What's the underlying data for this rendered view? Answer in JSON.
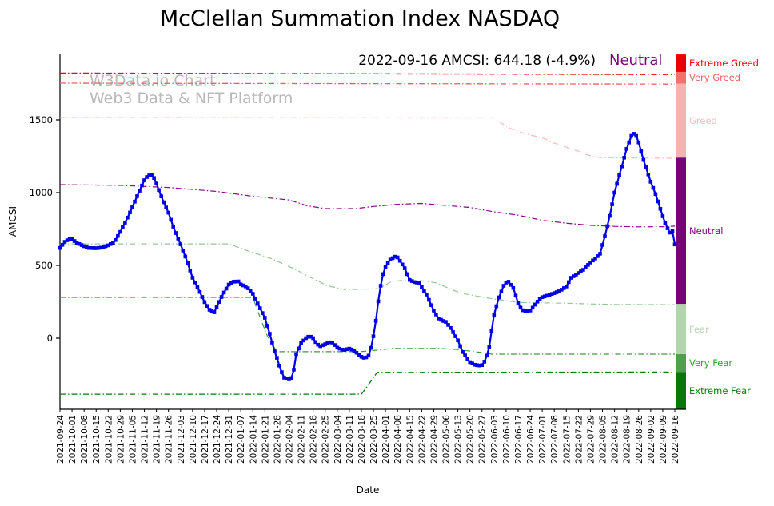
{
  "title": "McClellan Summation Index NASDAQ",
  "annotation": {
    "text": "2022-09-16 AMCSI: 644.18 (-4.9%)",
    "status": "Neutral",
    "status_color": "#7a067a"
  },
  "watermark": {
    "line1": "W3Data.io Chart",
    "line2": "Web3 Data & NFT Platform"
  },
  "chart_data": {
    "type": "line",
    "title": "McClellan Summation Index NASDAQ",
    "xlabel": "Date",
    "ylabel": "AMCSI",
    "ylim": [
      -490,
      1950
    ],
    "y_ticks": [
      0,
      500,
      1000,
      1500
    ],
    "grid": false,
    "x_ticklabels": [
      "2021-09-24",
      "2021-10-01",
      "2021-10-08",
      "2021-10-15",
      "2021-10-22",
      "2021-10-29",
      "2021-11-05",
      "2021-11-12",
      "2021-11-19",
      "2021-11-26",
      "2021-12-03",
      "2021-12-10",
      "2021-12-17",
      "2021-12-24",
      "2021-12-31",
      "2022-01-07",
      "2022-01-14",
      "2022-01-21",
      "2022-01-28",
      "2022-02-04",
      "2022-02-11",
      "2022-02-18",
      "2022-02-25",
      "2022-03-04",
      "2022-03-11",
      "2022-03-18",
      "2022-03-25",
      "2022-04-01",
      "2022-04-08",
      "2022-04-15",
      "2022-04-22",
      "2022-04-29",
      "2022-05-06",
      "2022-05-13",
      "2022-05-20",
      "2022-05-27",
      "2022-06-03",
      "2022-06-10",
      "2022-06-17",
      "2022-06-24",
      "2022-07-01",
      "2022-07-08",
      "2022-07-15",
      "2022-07-22",
      "2022-07-29",
      "2022-08-05",
      "2022-08-12",
      "2022-08-19",
      "2022-08-26",
      "2022-09-02",
      "2022-09-09",
      "2022-09-16"
    ],
    "zones": [
      {
        "label": "Extreme Greed",
        "from": 1830,
        "to": 1950,
        "color": "#e60000",
        "label_color": "#ee0000"
      },
      {
        "label": "Very Greed",
        "from": 1750,
        "to": 1830,
        "color": "#f47070",
        "label_color": "#f25f5f"
      },
      {
        "label": "Greed",
        "from": 1240,
        "to": 1750,
        "color": "#f6b1b1",
        "label_color": "#f9bcbc"
      },
      {
        "label": "Neutral",
        "from": 235,
        "to": 1240,
        "color": "#770377",
        "label_color": "#800080"
      },
      {
        "label": "Fear",
        "from": -110,
        "to": 235,
        "color": "#b3d5ae",
        "label_color": "#b4d5b0"
      },
      {
        "label": "Very Fear",
        "from": -232,
        "to": -110,
        "color": "#4f9f4f",
        "label_color": "#2f9e2f"
      },
      {
        "label": "Extreme Fear",
        "from": -490,
        "to": -232,
        "color": "#087808",
        "label_color": "#067d06"
      }
    ],
    "series": [
      {
        "name": "extreme-greed-threshold",
        "role": "threshold",
        "color": "#ee0000",
        "width": 1.4,
        "points": [
          [
            0,
            1822
          ],
          [
            51,
            1812
          ]
        ]
      },
      {
        "name": "very-greed-threshold",
        "role": "threshold",
        "color": "#f25f5f",
        "width": 1.3,
        "points": [
          [
            0,
            1753
          ],
          [
            51,
            1746
          ]
        ]
      },
      {
        "name": "greed-threshold",
        "role": "threshold",
        "color": "#f9bcbc",
        "width": 1.3,
        "points": [
          [
            0,
            1516
          ],
          [
            36,
            1514
          ],
          [
            36.6,
            1478
          ],
          [
            37.3,
            1443
          ],
          [
            38,
            1420
          ],
          [
            39,
            1395
          ],
          [
            39.6,
            1385
          ],
          [
            40.3,
            1368
          ],
          [
            40.7,
            1348
          ],
          [
            41.5,
            1328
          ],
          [
            42.3,
            1303
          ],
          [
            43,
            1285
          ],
          [
            43.6,
            1263
          ],
          [
            44.3,
            1247
          ],
          [
            45,
            1240
          ],
          [
            51,
            1236
          ]
        ]
      },
      {
        "name": "neutral-threshold",
        "role": "threshold",
        "color": "#8b008b",
        "width": 1.2,
        "points": [
          [
            0,
            1055
          ],
          [
            5,
            1050
          ],
          [
            9,
            1035
          ],
          [
            13,
            1008
          ],
          [
            16,
            975
          ],
          [
            19,
            950
          ],
          [
            20.5,
            910
          ],
          [
            22,
            890
          ],
          [
            24.5,
            890
          ],
          [
            26,
            905
          ],
          [
            28,
            920
          ],
          [
            30,
            926
          ],
          [
            32,
            912
          ],
          [
            34,
            898
          ],
          [
            36,
            868
          ],
          [
            38,
            845
          ],
          [
            40,
            810
          ],
          [
            42,
            790
          ],
          [
            44,
            775
          ],
          [
            46,
            768
          ],
          [
            48,
            765
          ],
          [
            50,
            766
          ],
          [
            51,
            770
          ]
        ]
      },
      {
        "name": "fear-threshold",
        "role": "threshold",
        "color": "#93c793",
        "width": 1.2,
        "points": [
          [
            0,
            648
          ],
          [
            14,
            648
          ],
          [
            15.6,
            600
          ],
          [
            17.6,
            545
          ],
          [
            19.6,
            470
          ],
          [
            20.6,
            425
          ],
          [
            22.2,
            360
          ],
          [
            23.7,
            333
          ],
          [
            26.5,
            340
          ],
          [
            27.5,
            390
          ],
          [
            28.5,
            398
          ],
          [
            30.2,
            394
          ],
          [
            31.2,
            380
          ],
          [
            33.2,
            310
          ],
          [
            35.5,
            275
          ],
          [
            38.1,
            245
          ],
          [
            40,
            243
          ],
          [
            42,
            240
          ],
          [
            44,
            235
          ],
          [
            46,
            232
          ],
          [
            51,
            230
          ]
        ]
      },
      {
        "name": "very-fear-threshold",
        "role": "threshold",
        "color": "#3d9a3d",
        "width": 1.2,
        "points": [
          [
            0,
            280
          ],
          [
            16,
            280
          ],
          [
            16.6,
            143
          ],
          [
            17.2,
            16
          ],
          [
            18,
            -93
          ],
          [
            24.9,
            -93
          ],
          [
            26,
            -85
          ],
          [
            27.5,
            -71
          ],
          [
            31.5,
            -71
          ],
          [
            33,
            -78
          ],
          [
            35.3,
            -102
          ],
          [
            35.8,
            -110
          ],
          [
            51,
            -110
          ]
        ]
      },
      {
        "name": "extreme-fear-threshold",
        "role": "threshold",
        "color": "#067d06",
        "width": 1.3,
        "points": [
          [
            0,
            -385
          ],
          [
            25.0,
            -385
          ],
          [
            25.5,
            -330
          ],
          [
            26.3,
            -235
          ],
          [
            51,
            -233
          ]
        ]
      },
      {
        "name": "amcsi",
        "role": "main",
        "color": "#0000e6",
        "width": 2.2,
        "marker": "square",
        "marker_size": 4.6,
        "points": [
          [
            0,
            620
          ],
          [
            0.4,
            662
          ],
          [
            0.8,
            683
          ],
          [
            1,
            680
          ],
          [
            1.4,
            655
          ],
          [
            2,
            632
          ],
          [
            2.4,
            620
          ],
          [
            3,
            618
          ],
          [
            3.4,
            622
          ],
          [
            4,
            638
          ],
          [
            4.5,
            660
          ],
          [
            5,
            730
          ],
          [
            5.5,
            810
          ],
          [
            6,
            900
          ],
          [
            6.5,
            995
          ],
          [
            7,
            1085
          ],
          [
            7.3,
            1118
          ],
          [
            7.7,
            1120
          ],
          [
            8,
            1062
          ],
          [
            8.5,
            952
          ],
          [
            9,
            862
          ],
          [
            9.5,
            742
          ],
          [
            10,
            645
          ],
          [
            10.5,
            540
          ],
          [
            11,
            415
          ],
          [
            11.5,
            335
          ],
          [
            12,
            248
          ],
          [
            12.4,
            195
          ],
          [
            12.8,
            178
          ],
          [
            13,
            215
          ],
          [
            13.5,
            300
          ],
          [
            14,
            368
          ],
          [
            14.4,
            388
          ],
          [
            14.8,
            390
          ],
          [
            15,
            370
          ],
          [
            15.5,
            352
          ],
          [
            16,
            305
          ],
          [
            16.5,
            222
          ],
          [
            17,
            140
          ],
          [
            17.4,
            30
          ],
          [
            17.8,
            -90
          ],
          [
            18,
            -135
          ],
          [
            18.3,
            -215
          ],
          [
            18.6,
            -272
          ],
          [
            19,
            -283
          ],
          [
            19.3,
            -270
          ],
          [
            19.6,
            -110
          ],
          [
            20,
            -32
          ],
          [
            20.4,
            0
          ],
          [
            20.7,
            15
          ],
          [
            21,
            0
          ],
          [
            21.3,
            -40
          ],
          [
            21.6,
            -55
          ],
          [
            22,
            -42
          ],
          [
            22.3,
            -28
          ],
          [
            22.6,
            -30
          ],
          [
            23,
            -65
          ],
          [
            23.5,
            -82
          ],
          [
            24,
            -72
          ],
          [
            24.3,
            -80
          ],
          [
            24.6,
            -100
          ],
          [
            25,
            -128
          ],
          [
            25.3,
            -138
          ],
          [
            25.6,
            -120
          ],
          [
            25.9,
            -40
          ],
          [
            26.2,
            120
          ],
          [
            26.5,
            320
          ],
          [
            26.8,
            440
          ],
          [
            27,
            490
          ],
          [
            27.4,
            540
          ],
          [
            27.8,
            560
          ],
          [
            28,
            555
          ],
          [
            28.3,
            520
          ],
          [
            28.6,
            480
          ],
          [
            29,
            400
          ],
          [
            29.4,
            385
          ],
          [
            29.8,
            380
          ],
          [
            30,
            350
          ],
          [
            30.4,
            300
          ],
          [
            31,
            190
          ],
          [
            31.4,
            135
          ],
          [
            31.8,
            118
          ],
          [
            32,
            112
          ],
          [
            32.4,
            70
          ],
          [
            33,
            -15
          ],
          [
            33.4,
            -95
          ],
          [
            34,
            -165
          ],
          [
            34.4,
            -183
          ],
          [
            34.8,
            -188
          ],
          [
            35,
            -185
          ],
          [
            35.3,
            -150
          ],
          [
            35.6,
            -60
          ],
          [
            36,
            160
          ],
          [
            36.4,
            280
          ],
          [
            36.8,
            360
          ],
          [
            37,
            382
          ],
          [
            37.2,
            388
          ],
          [
            37.6,
            345
          ],
          [
            38,
            240
          ],
          [
            38.3,
            195
          ],
          [
            38.7,
            182
          ],
          [
            39,
            190
          ],
          [
            39.4,
            230
          ],
          [
            39.7,
            262
          ],
          [
            40,
            282
          ],
          [
            40.4,
            292
          ],
          [
            41,
            310
          ],
          [
            41.4,
            322
          ],
          [
            42,
            355
          ],
          [
            42.4,
            415
          ],
          [
            43,
            448
          ],
          [
            43.4,
            470
          ],
          [
            44,
            520
          ],
          [
            44.4,
            548
          ],
          [
            44.8,
            580
          ],
          [
            45.2,
            700
          ],
          [
            45.6,
            840
          ],
          [
            46,
            1000
          ],
          [
            46.5,
            1150
          ],
          [
            47,
            1300
          ],
          [
            47.4,
            1390
          ],
          [
            47.7,
            1412
          ],
          [
            48,
            1345
          ],
          [
            48.4,
            1225
          ],
          [
            49,
            1075
          ],
          [
            49.4,
            990
          ],
          [
            50,
            838
          ],
          [
            50.3,
            770
          ],
          [
            50.6,
            725
          ],
          [
            50.8,
            735
          ],
          [
            51,
            644.18
          ]
        ]
      }
    ]
  }
}
